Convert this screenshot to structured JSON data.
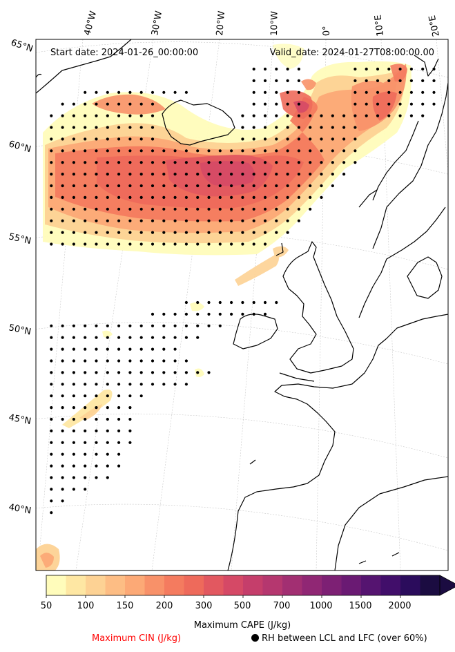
{
  "header": {
    "start_date": "Start date: 2024-01-26_00:00:00",
    "valid_date": "Valid_date: 2024-01-27T08:00:00.00"
  },
  "map": {
    "lon_labels": [
      "40°W",
      "30°W",
      "20°W",
      "10°W",
      "0°",
      "10°E",
      "20°E"
    ],
    "lat_labels": [
      "65°N",
      "60°N",
      "55°N",
      "50°N",
      "45°N",
      "40°N"
    ]
  },
  "colorbar": {
    "title": "Maximum CAPE (J/kg)",
    "ticks": [
      "50",
      "100",
      "150",
      "200",
      "300",
      "500",
      "700",
      "1000",
      "1500",
      "2000"
    ],
    "colors": [
      "#fffcbb",
      "#fee7a3",
      "#fdd294",
      "#fdbd84",
      "#fca976",
      "#f89169",
      "#f47b5f",
      "#ee6a5b",
      "#e25860",
      "#d54966",
      "#c53e6b",
      "#b5376f",
      "#a22f72",
      "#902774",
      "#7d2074",
      "#6a1a73",
      "#551470",
      "#410e6a",
      "#2b0c5c",
      "#1b0c41"
    ]
  },
  "legend": {
    "cin": "Maximum CIN (J/kg)",
    "rh": "RH between LCL and LFC (over 60%)"
  }
}
